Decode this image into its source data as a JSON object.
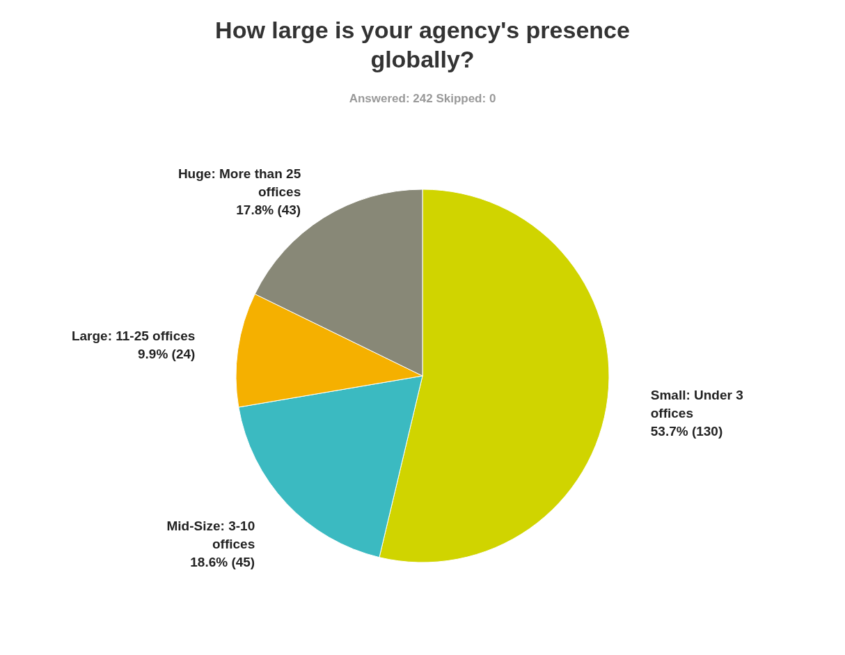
{
  "chart_data": {
    "type": "pie",
    "title": "How large is your agency's presence globally?",
    "subtitle": "Answered: 242    Skipped: 0",
    "categories": [
      "Small: Under 3 offices",
      "Mid-Size: 3-10 offices",
      "Large: 11-25 offices",
      "Huge: More than 25 offices"
    ],
    "values": [
      130,
      45,
      24,
      43
    ],
    "value_labels": [
      "53.7% (130)",
      "18.6% (45)",
      "9.9% (24)",
      "17.8% (43)"
    ],
    "colors": [
      "#d0d400",
      "#3bbac1",
      "#f5b000",
      "#888877"
    ],
    "legend": false
  }
}
